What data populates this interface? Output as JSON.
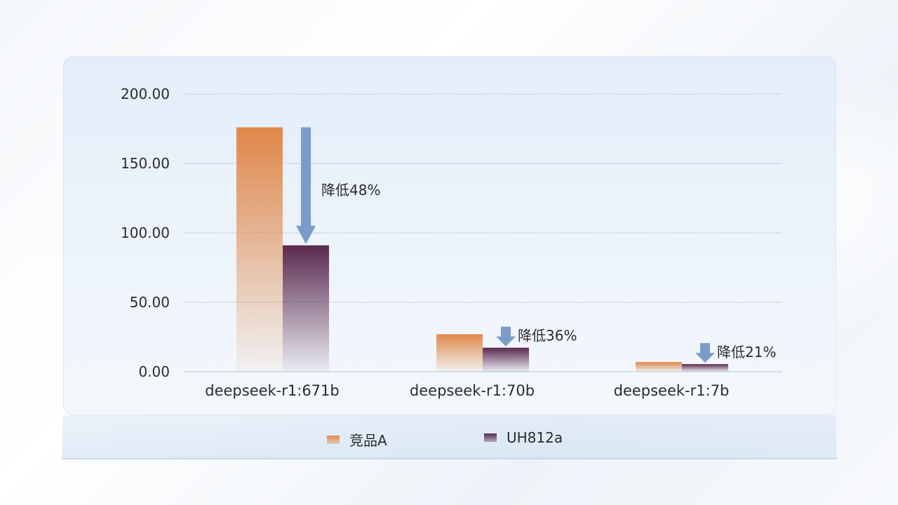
{
  "chart_data": {
    "type": "bar",
    "categories": [
      "deepseek-r1:671b",
      "deepseek-r1:70b",
      "deepseek-r1:7b"
    ],
    "series": [
      {
        "name": "竞品A",
        "values": [
          176,
          27,
          7
        ],
        "color": "#e0884a"
      },
      {
        "name": "UH812a",
        "values": [
          91,
          17.3,
          5.5
        ],
        "color": "#5a2a4e"
      }
    ],
    "ylim": [
      0,
      200
    ],
    "yticks": [
      "0.00",
      "50.00",
      "100.00",
      "150.00",
      "200.00"
    ],
    "ytick_values": [
      0,
      50,
      100,
      150,
      200
    ],
    "grid": true,
    "legend_position": "bottom",
    "annotations": [
      {
        "category_index": 0,
        "text": "降低48%"
      },
      {
        "category_index": 1,
        "text": "降低36%"
      },
      {
        "category_index": 2,
        "text": "降低21%"
      }
    ],
    "arrow_color": "#7b9ccb"
  }
}
